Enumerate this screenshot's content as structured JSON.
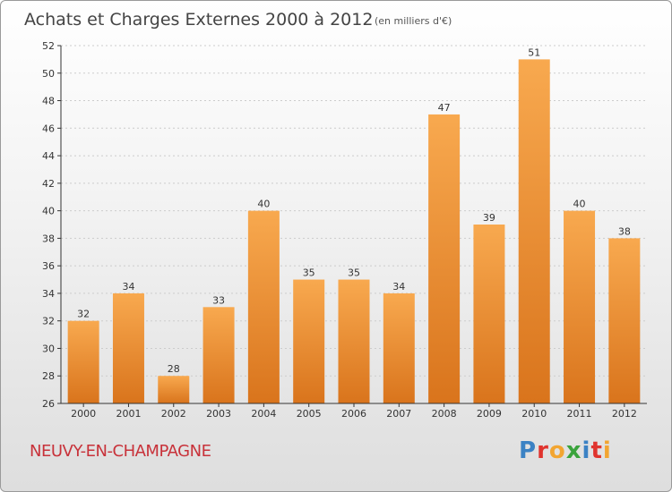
{
  "title": "Achats et Charges Externes 2000 à 2012",
  "subtitle": "(en milliers d'€)",
  "commune": "NEUVY-EN-CHAMPAGNE",
  "logo": "Proxiti",
  "colors": {
    "bar_light": "#f8a94f",
    "bar_dark": "#d9741c",
    "commune": "#c8323a"
  },
  "chart_data": {
    "type": "bar",
    "title": "Achats et Charges Externes 2000 à 2012",
    "subtitle": "(en milliers d'€)",
    "xlabel": "",
    "ylabel": "",
    "categories": [
      "2000",
      "2001",
      "2002",
      "2003",
      "2004",
      "2005",
      "2006",
      "2007",
      "2008",
      "2009",
      "2010",
      "2011",
      "2012"
    ],
    "values": [
      32,
      34,
      28,
      33,
      40,
      35,
      35,
      34,
      47,
      39,
      51,
      40,
      38
    ],
    "ylim": [
      26,
      52
    ],
    "yticks": [
      26,
      28,
      30,
      32,
      34,
      36,
      38,
      40,
      42,
      44,
      46,
      48,
      50,
      52
    ],
    "grid": true,
    "legend": "none"
  }
}
